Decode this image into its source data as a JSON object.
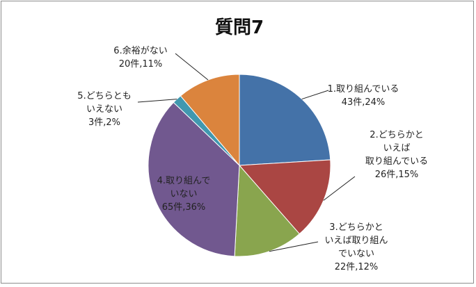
{
  "chart_data": {
    "type": "pie",
    "title": "質問7",
    "slices": [
      {
        "lines": [
          "1.取り組んでいる",
          "43件,24%"
        ],
        "count": 43,
        "percent": 24,
        "color": "#4472A8"
      },
      {
        "lines": [
          "2.どちらかと",
          "いえば",
          "取り組んでいる",
          "26件,15%"
        ],
        "count": 26,
        "percent": 15,
        "color": "#AA4643"
      },
      {
        "lines": [
          "3.どちらかと",
          "いえば取り組ん",
          "でいない",
          "22件,12%"
        ],
        "count": 22,
        "percent": 12,
        "color": "#89A54E"
      },
      {
        "lines": [
          "4.取り組んで",
          "いない",
          "65件,36%"
        ],
        "count": 65,
        "percent": 36,
        "color": "#71588F"
      },
      {
        "lines": [
          "5.どちらとも",
          "いえない",
          "3件,2%"
        ],
        "count": 3,
        "percent": 2,
        "color": "#4198AF"
      },
      {
        "lines": [
          "6.余裕がない",
          "20件,11%"
        ],
        "count": 20,
        "percent": 11,
        "color": "#DB843D"
      }
    ]
  }
}
